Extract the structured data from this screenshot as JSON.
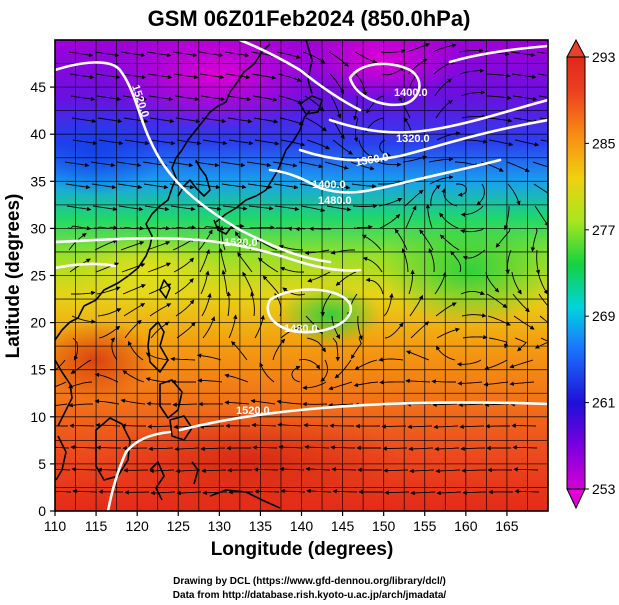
{
  "title": "GSM 06Z01Feb2024 (850.0hPa)",
  "xlabel": "Longitude (degrees)",
  "ylabel": "Latitude  (degrees)",
  "credit_line1": "Drawing by DCL (https://www.gfd-dennou.org/library/dcl/)",
  "credit_line2": "Data from http://database.rish.kyoto-u.ac.jp/arch/jmadata/",
  "x_ticks": [
    "110",
    "115",
    "120",
    "125",
    "130",
    "135",
    "140",
    "145",
    "150",
    "155",
    "160",
    "165"
  ],
  "y_ticks": [
    "0",
    "5",
    "10",
    "15",
    "20",
    "25",
    "30",
    "35",
    "40",
    "45"
  ],
  "colorbar_ticks": [
    "253",
    "261",
    "269",
    "277",
    "285",
    "293"
  ],
  "contour_labels": [
    "1520.0",
    "1400.0",
    "1360.0",
    "1520.0",
    "1320.0",
    "1400.0",
    "1480.0",
    "1480.0",
    "1520.0"
  ],
  "colors": {
    "frame": "#000000",
    "coast": "#000000",
    "contour": "#ffffff",
    "streamline": "#000000"
  },
  "map_data": {
    "projection": "equirectangular",
    "lon_range": [
      110,
      170
    ],
    "lat_range": [
      0,
      50
    ],
    "fill_variable_range": [
      253,
      293
    ],
    "gridlines": true,
    "palette": [
      "#d400d4",
      "#7a00e0",
      "#1e10d8",
      "#1a78ff",
      "#00d4dc",
      "#14d242",
      "#a8e61e",
      "#f0d010",
      "#f88c14",
      "#ec4020",
      "#e0281c"
    ]
  }
}
